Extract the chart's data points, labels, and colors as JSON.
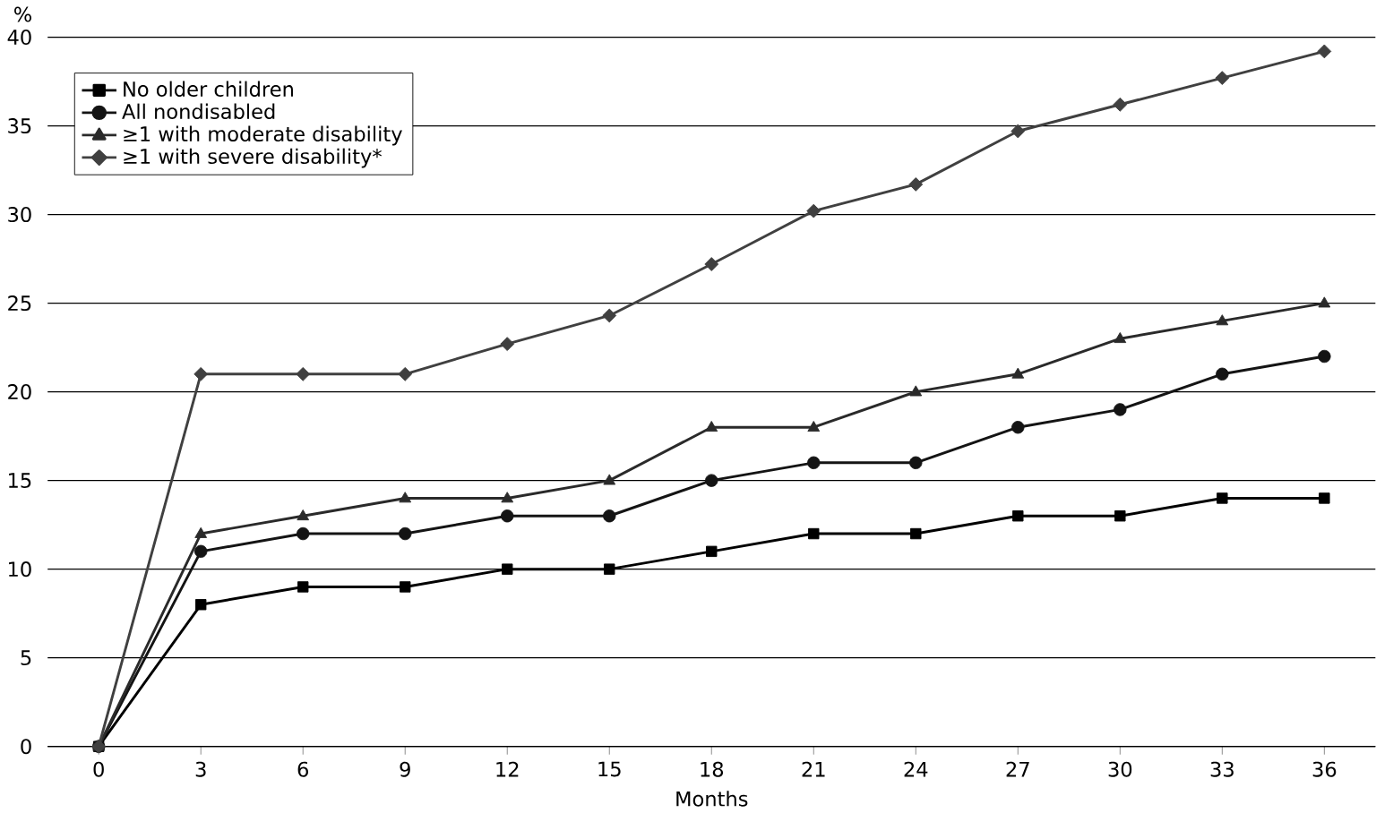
{
  "chart_data": {
    "type": "line",
    "ylabel": "%",
    "xlabel": "Months",
    "x": [
      0,
      3,
      6,
      9,
      12,
      15,
      18,
      21,
      24,
      27,
      30,
      33,
      36
    ],
    "series": [
      {
        "name": "No older children",
        "color": "#000000",
        "marker": "square",
        "values": [
          0,
          8,
          9,
          9,
          10,
          10,
          11,
          12,
          12,
          13,
          13,
          14,
          14
        ]
      },
      {
        "name": "All nondisabled",
        "color": "#141414",
        "marker": "circle",
        "values": [
          0,
          11,
          12,
          12,
          13,
          13,
          15,
          16,
          16,
          18,
          19,
          21,
          22
        ]
      },
      {
        "name": "≥1 with moderate disability",
        "color": "#2a2a2a",
        "marker": "triangle",
        "values": [
          0,
          12,
          13,
          14,
          14,
          15,
          18,
          18,
          20,
          21,
          23,
          24,
          25
        ]
      },
      {
        "name": "≥1 with severe disability*",
        "color": "#404040",
        "marker": "diamond",
        "values": [
          0,
          21,
          21,
          21,
          22.7,
          24.3,
          27.2,
          30.2,
          31.7,
          34.7,
          36.2,
          37.7,
          39.2
        ]
      }
    ],
    "xlim": [
      -1.5,
      37.5
    ],
    "ylim": [
      0,
      40
    ],
    "xticks": [
      0,
      3,
      6,
      9,
      12,
      15,
      18,
      21,
      24,
      27,
      30,
      33,
      36
    ],
    "yticks": [
      0,
      5,
      10,
      15,
      20,
      25,
      30,
      35,
      40
    ],
    "grid": "y",
    "legend": "top left",
    "line_style": "solid"
  }
}
